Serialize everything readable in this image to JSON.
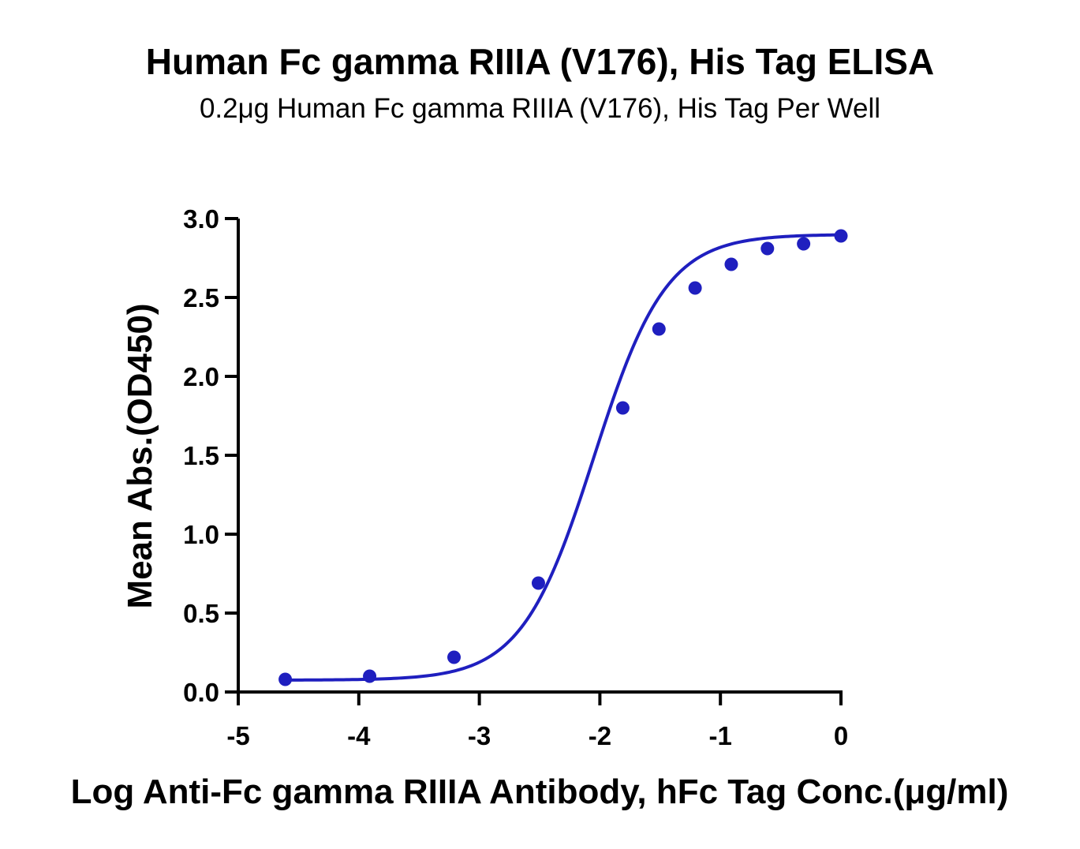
{
  "chart_data": {
    "type": "scatter",
    "title": "Human Fc gamma RIIIA (V176), His Tag ELISA",
    "subtitle": "0.2μg Human Fc gamma RIIIA (V176), His Tag Per Well",
    "xlabel": "Log Anti-Fc gamma RIIIA Antibody, hFc Tag Conc.(μg/ml)",
    "ylabel": "Mean Abs.(OD450)",
    "xlim": [
      -5,
      0
    ],
    "ylim": [
      0,
      3.0
    ],
    "x_ticks": [
      "-5",
      "-4",
      "-3",
      "-2",
      "-1",
      "0"
    ],
    "y_ticks": [
      "0.0",
      "0.5",
      "1.0",
      "1.5",
      "2.0",
      "2.5",
      "3.0"
    ],
    "grid": false,
    "series": [
      {
        "x": [
          -4.61,
          -3.91,
          -3.21,
          -2.51,
          -1.81,
          -1.51,
          -1.21,
          -0.91,
          -0.61,
          -0.31,
          0.0
        ],
        "y": [
          0.08,
          0.1,
          0.22,
          0.69,
          1.8,
          2.3,
          2.56,
          2.71,
          2.81,
          2.84,
          2.89
        ],
        "fit": "4PL",
        "color": "#1f1fbf"
      }
    ]
  }
}
